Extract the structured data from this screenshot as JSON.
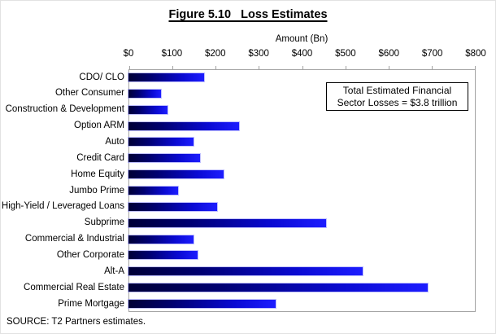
{
  "figure": {
    "title": "Figure 5.10   Loss Estimates",
    "annotation_line1": "Total Estimated Financial",
    "annotation_line2": "Sector Losses = $3.8 trillion",
    "source": "SOURCE: T2 Partners estimates."
  },
  "chart_data": {
    "type": "bar",
    "orientation": "horizontal",
    "title": "Figure 5.10   Loss Estimates",
    "xlabel": "Amount (Bn)",
    "ylabel": "",
    "xlim": [
      0,
      800
    ],
    "x_ticks": [
      "$0",
      "$100",
      "$200",
      "$300",
      "$400",
      "$500",
      "$600",
      "$700",
      "$800"
    ],
    "x_tick_values": [
      0,
      100,
      200,
      300,
      400,
      500,
      600,
      700,
      800
    ],
    "categories": [
      "CDO/ CLO",
      "Other Consumer",
      "Construction & Development",
      "Option ARM",
      "Auto",
      "Credit Card",
      "Home Equity",
      "Jumbo Prime",
      "High-Yield / Leveraged Loans",
      "Subprime",
      "Commercial & Industrial",
      "Other Corporate",
      "Alt-A",
      "Commercial Real Estate",
      "Prime Mortgage"
    ],
    "values": [
      175,
      75,
      90,
      255,
      150,
      165,
      220,
      115,
      205,
      455,
      150,
      160,
      540,
      690,
      340
    ],
    "grid": false,
    "legend": null,
    "bar_color_gradient": [
      "#000036",
      "#1d1dff"
    ],
    "annotations": [
      "Total Estimated Financial Sector Losses = $3.8 trillion"
    ],
    "source": "SOURCE: T2 Partners estimates."
  }
}
